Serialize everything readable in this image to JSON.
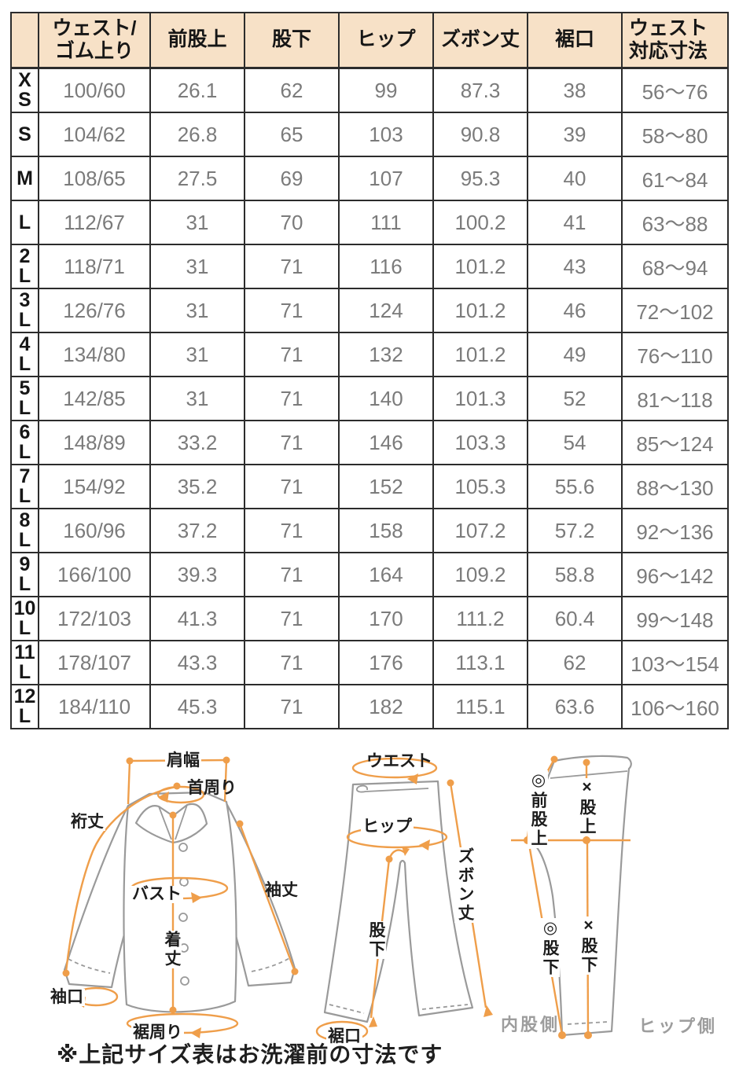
{
  "table": {
    "columns": [
      [
        ""
      ],
      [
        "ウェスト/",
        "ゴム上り"
      ],
      [
        "前股上"
      ],
      [
        "股下"
      ],
      [
        "ヒップ"
      ],
      [
        "ズボン丈"
      ],
      [
        "裾口"
      ],
      [
        "ウェスト",
        "対応寸法"
      ]
    ],
    "rows": [
      {
        "size": "XS",
        "size_lines": [
          "X",
          "S"
        ],
        "values": [
          "100/60",
          "26.1",
          "62",
          "99",
          "87.3",
          "38",
          "56～76"
        ]
      },
      {
        "size": "S",
        "size_lines": [
          "S"
        ],
        "values": [
          "104/62",
          "26.8",
          "65",
          "103",
          "90.8",
          "39",
          "58～80"
        ]
      },
      {
        "size": "M",
        "size_lines": [
          "M"
        ],
        "values": [
          "108/65",
          "27.5",
          "69",
          "107",
          "95.3",
          "40",
          "61～84"
        ]
      },
      {
        "size": "L",
        "size_lines": [
          "L"
        ],
        "values": [
          "112/67",
          "31",
          "70",
          "111",
          "100.2",
          "41",
          "63～88"
        ]
      },
      {
        "size": "2L",
        "size_lines": [
          "2",
          "L"
        ],
        "values": [
          "118/71",
          "31",
          "71",
          "116",
          "101.2",
          "43",
          "68～94"
        ]
      },
      {
        "size": "3L",
        "size_lines": [
          "3",
          "L"
        ],
        "values": [
          "126/76",
          "31",
          "71",
          "124",
          "101.2",
          "46",
          "72～102"
        ]
      },
      {
        "size": "4L",
        "size_lines": [
          "4",
          "L"
        ],
        "values": [
          "134/80",
          "31",
          "71",
          "132",
          "101.2",
          "49",
          "76～110"
        ]
      },
      {
        "size": "5L",
        "size_lines": [
          "5",
          "L"
        ],
        "values": [
          "142/85",
          "31",
          "71",
          "140",
          "101.3",
          "52",
          "81～118"
        ]
      },
      {
        "size": "6L",
        "size_lines": [
          "6",
          "L"
        ],
        "values": [
          "148/89",
          "33.2",
          "71",
          "146",
          "103.3",
          "54",
          "85～124"
        ]
      },
      {
        "size": "7L",
        "size_lines": [
          "7",
          "L"
        ],
        "values": [
          "154/92",
          "35.2",
          "71",
          "152",
          "105.3",
          "55.6",
          "88～130"
        ]
      },
      {
        "size": "8L",
        "size_lines": [
          "8",
          "L"
        ],
        "values": [
          "160/96",
          "37.2",
          "71",
          "158",
          "107.2",
          "57.2",
          "92～136"
        ]
      },
      {
        "size": "9L",
        "size_lines": [
          "9",
          "L"
        ],
        "values": [
          "166/100",
          "39.3",
          "71",
          "164",
          "109.2",
          "58.8",
          "96～142"
        ]
      },
      {
        "size": "10L",
        "size_lines": [
          "10",
          "L"
        ],
        "values": [
          "172/103",
          "41.3",
          "71",
          "170",
          "111.2",
          "60.4",
          "99～148"
        ]
      },
      {
        "size": "11L",
        "size_lines": [
          "11",
          "L"
        ],
        "values": [
          "178/107",
          "43.3",
          "71",
          "176",
          "113.1",
          "62",
          "103～154"
        ]
      },
      {
        "size": "12L",
        "size_lines": [
          "12",
          "L"
        ],
        "values": [
          "184/110",
          "45.3",
          "71",
          "182",
          "115.1",
          "63.6",
          "106～160"
        ]
      }
    ]
  },
  "diagrams": {
    "shirt": {
      "labels": {
        "shoulder_width": "肩幅",
        "neck": "首周り",
        "yuki": "裄丈",
        "bust": "バスト",
        "sleeve_length": "袖丈",
        "body_length": "着丈",
        "cuff": "袖口",
        "hem_around": "裾周り"
      }
    },
    "pants_front": {
      "labels": {
        "waist": "ウエスト",
        "hip": "ヒップ",
        "pants_length": "ズボン丈",
        "inseam": "股下",
        "hem": "裾口"
      }
    },
    "pants_side": {
      "labels": {
        "front_rise": "◎前股上",
        "rise": "×股上",
        "inseam_a": "◎股下",
        "inseam_b": "×股下",
        "inner_side": "内股側",
        "hip_side": "ヒップ側"
      }
    }
  },
  "note": "※上記サイズ表はお洗濯前の寸法です",
  "colors": {
    "header_bg": "#f7e1c7",
    "accent": "#ef9e4a",
    "outline": "#9a9a9a",
    "value_text": "#7b7b7b",
    "border": "#2c2c2c"
  }
}
